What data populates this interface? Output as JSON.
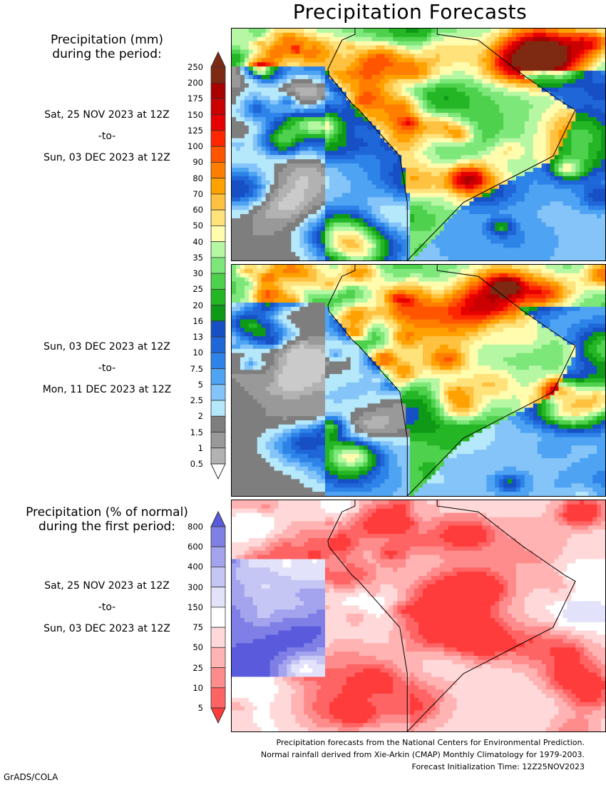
{
  "title": "Precipitation Forecasts",
  "legend_mm": {
    "title_line1": "Precipitation (mm)",
    "title_line2": "during the period:",
    "levels": [
      "250",
      "200",
      "175",
      "150",
      "125",
      "100",
      "90",
      "80",
      "70",
      "60",
      "50",
      "40",
      "35",
      "30",
      "25",
      "20",
      "16",
      "13",
      "10",
      "7.5",
      "5",
      "2.5",
      "2",
      "1.5",
      "1",
      "0.5"
    ],
    "colors": [
      "#7e2a13",
      "#a90000",
      "#cb0000",
      "#e60000",
      "#ff2600",
      "#ff5500",
      "#ff7e00",
      "#ffa100",
      "#ffc240",
      "#ffe27a",
      "#fffcae",
      "#b6f7a4",
      "#7de77a",
      "#4ed14c",
      "#25b626",
      "#0e9a16",
      "#1650c4",
      "#1f67d8",
      "#2d83e8",
      "#4ea3f3",
      "#84c4f8",
      "#b5e8fb",
      "#7e7e7e",
      "#999999",
      "#b2b2b2",
      "#cacaca"
    ]
  },
  "period1": {
    "start": "Sat, 25 NOV 2023 at 12Z",
    "sep": "-to-",
    "end": "Sun, 03 DEC 2023 at 12Z"
  },
  "period2": {
    "start": "Sun, 03 DEC 2023 at 12Z",
    "sep": "-to-",
    "end": "Mon, 11 DEC 2023 at 12Z"
  },
  "legend_pct": {
    "title_line1": "Precipitation (% of normal)",
    "title_line2": "during the first period:",
    "levels": [
      "800",
      "600",
      "400",
      "300",
      "150",
      "75",
      "50",
      "25",
      "10",
      "5"
    ],
    "colors": [
      "#5a5add",
      "#7f7fe6",
      "#a3a3ee",
      "#c6c6f5",
      "#e2e2fb",
      "#ffffff",
      "#ffd9d9",
      "#ffb3b3",
      "#ff8c8c",
      "#ff6464",
      "#ff3c3c"
    ]
  },
  "period3": {
    "start": "Sat, 25 NOV 2023 at 12Z",
    "sep": "-to-",
    "end": "Sun, 03 DEC 2023 at 12Z"
  },
  "credits": {
    "line1": "Precipitation forecasts from the National Centers for Environmental Prediction.",
    "line2": "Normal rainfall derived from Xie-Arkin (CMAP) Monthly Climatology for 1979-2003.",
    "line3": "Forecast Initialization Time: 12Z25NOV2023"
  },
  "footer": "GrADS/COLA"
}
